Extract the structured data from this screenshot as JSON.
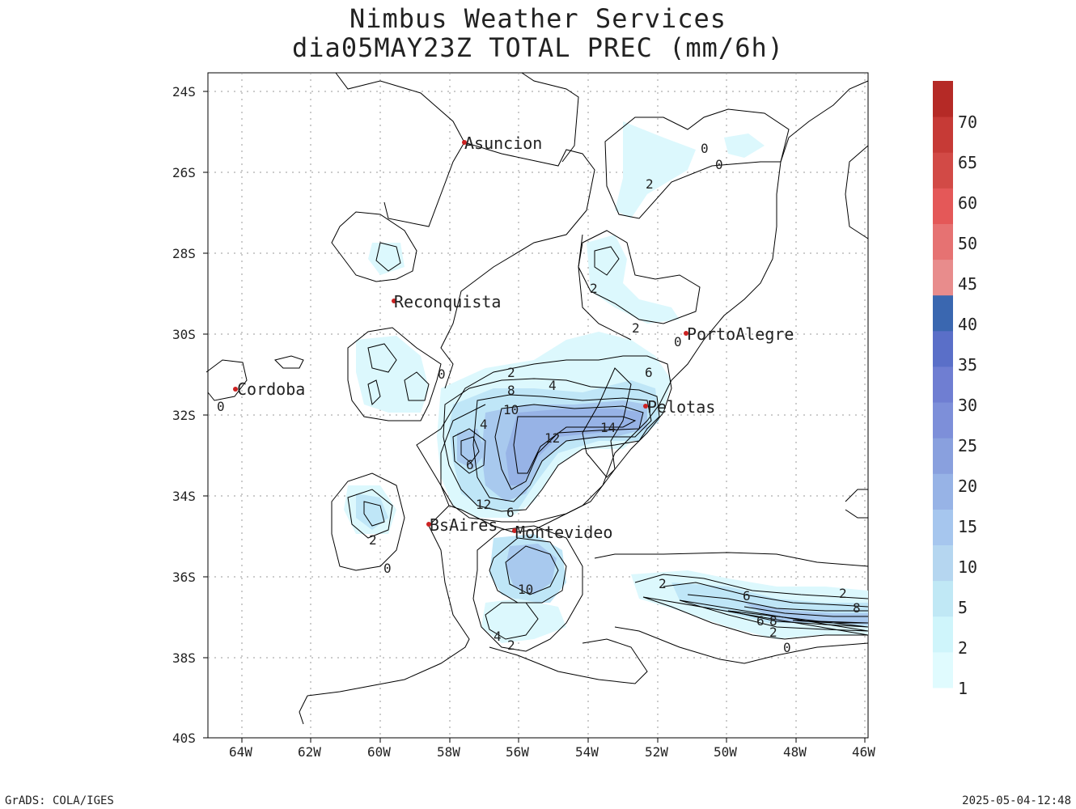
{
  "title": {
    "line1": "Nimbus Weather Services",
    "line2": "dia05MAY23Z TOTAL PREC (mm/6h)"
  },
  "axes": {
    "lat_ticks": [
      "24S",
      "26S",
      "28S",
      "30S",
      "32S",
      "34S",
      "36S",
      "38S",
      "40S"
    ],
    "lon_ticks": [
      "64W",
      "62W",
      "60W",
      "58W",
      "56W",
      "54W",
      "52W",
      "50W",
      "48W",
      "46W"
    ]
  },
  "colorbar": {
    "levels": [
      "1",
      "2",
      "5",
      "10",
      "15",
      "20",
      "25",
      "30",
      "35",
      "40",
      "45",
      "50",
      "60",
      "65",
      "70"
    ],
    "colors": [
      "#e0fbfe",
      "#cff5fb",
      "#c0e8f5",
      "#b5d6f0",
      "#a6c6ee",
      "#97b3e6",
      "#89a0de",
      "#7d8fd9",
      "#6f7ed2",
      "#5a6fc8",
      "#3a67b0",
      "#e88c8c",
      "#e67272",
      "#e45858",
      "#d24a46",
      "#c63a36",
      "#b52a26"
    ]
  },
  "cities": [
    {
      "name": "Asuncion"
    },
    {
      "name": "Reconquista"
    },
    {
      "name": "Cordoba"
    },
    {
      "name": "PortoAlegre"
    },
    {
      "name": "Pelotas"
    },
    {
      "name": "BsAires"
    },
    {
      "name": "Montevideo"
    }
  ],
  "contour_labels": [
    "0",
    "0",
    "2",
    "2",
    "2",
    "0",
    "0",
    "2",
    "8",
    "4",
    "10",
    "4",
    "12",
    "14",
    "6",
    "6",
    "12",
    "6",
    "2",
    "0",
    "10",
    "4",
    "2",
    "2",
    "6",
    "2",
    "6",
    "8",
    "2",
    "0",
    "8",
    "0"
  ],
  "footer": {
    "left": "GrADS: COLA/IGES",
    "right": "2025-05-04-12:48"
  }
}
